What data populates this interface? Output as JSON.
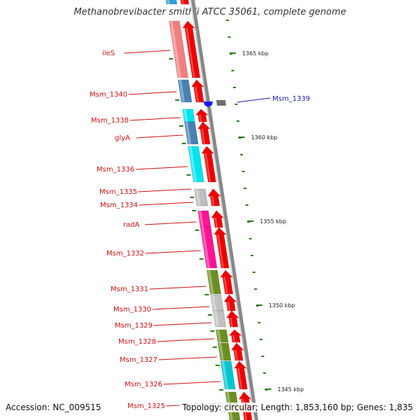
{
  "header": {
    "title": "Methanobrevibacter smithii ATCC 35061, complete genome"
  },
  "footer": {
    "accession": "Accession: NC_009515",
    "stats": "Topology: circular; Length: 1,853,160 bp; Genes: 1,835"
  },
  "colors": {
    "arrow": "#ee0000",
    "label": "#cc1111",
    "reverse_label": "#1a1aaa",
    "backbone": "#999999",
    "tick": "#2e7d1f"
  },
  "scale_ticks": [
    {
      "label": "1365 kbp",
      "kbp": 1365
    },
    {
      "label": "1360 kbp",
      "kbp": 1360
    },
    {
      "label": "1355 kbp",
      "kbp": 1355
    },
    {
      "label": "1350 kbp",
      "kbp": 1350
    },
    {
      "label": "1345 kbp",
      "kbp": 1345
    }
  ],
  "genes": [
    {
      "label": "",
      "color": "#2b9fd8"
    },
    {
      "label": "ileS",
      "color": "#f08080"
    },
    {
      "label": "Msm_1340",
      "color": "#4682b4"
    },
    {
      "label": "Msm_1338",
      "color": "#00e5ee"
    },
    {
      "label": "glyA",
      "color": "#4682b4"
    },
    {
      "label": "Msm_1336",
      "color": "#00e5ee"
    },
    {
      "label": "Msm_1335",
      "color": "#bebebe"
    },
    {
      "label": "Msm_1334",
      "color": "#bebebe"
    },
    {
      "label": "radA",
      "color": "#ff1493"
    },
    {
      "label": "Msm_1332",
      "color": "#ff1493"
    },
    {
      "label": "Msm_1331",
      "color": "#6b8e23"
    },
    {
      "label": "Msm_1330",
      "color": "#c0c0c0"
    },
    {
      "label": "Msm_1329",
      "color": "#c0c0c0"
    },
    {
      "label": "Msm_1328",
      "color": "#6b8e23"
    },
    {
      "label": "Msm_1327",
      "color": "#6b8e23"
    },
    {
      "label": "Msm_1326",
      "color": "#00c8d0"
    },
    {
      "label": "Msm_1325",
      "color": "#6b8e23"
    }
  ],
  "reverse_genes": [
    {
      "label": "Msm_1339",
      "color": "#1a1aee"
    }
  ]
}
